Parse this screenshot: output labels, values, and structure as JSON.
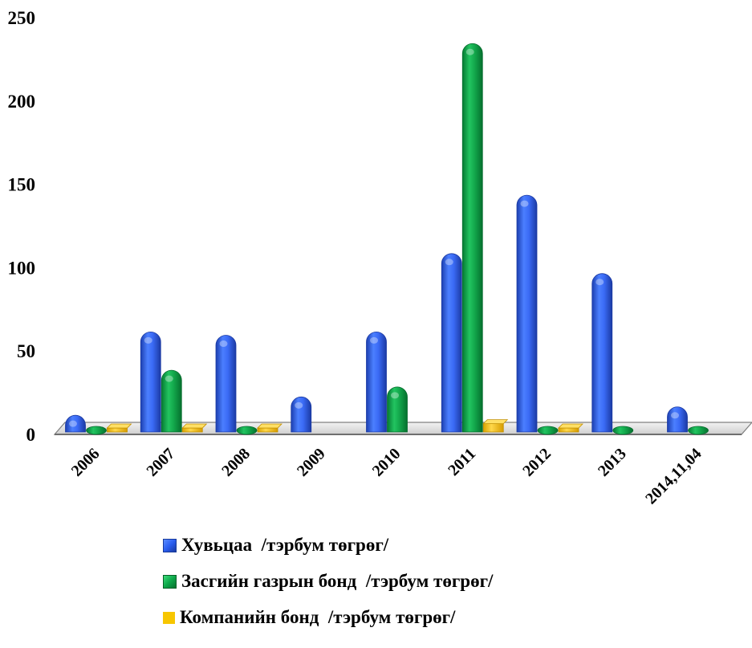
{
  "chart_data": {
    "type": "bar",
    "categories": [
      "2006",
      "2007",
      "2008",
      "2009",
      "2010",
      "2011",
      "2012",
      "2013",
      "2014,11,04"
    ],
    "series": [
      {
        "name": "Хувьцаа  /тэрбум төгрөг/",
        "color": "#2a5ef0",
        "values": [
          11,
          61,
          59,
          22,
          61,
          108,
          143,
          96,
          16
        ]
      },
      {
        "name": "Засгийн газрын бонд  /тэрбум төгрөг/",
        "color": "#0da84a",
        "values": [
          3,
          38,
          1,
          0,
          28,
          234,
          0.5,
          1,
          3
        ]
      },
      {
        "name": "Компанийн бонд  /тэрбум төгрөг/",
        "color": "#f7c600",
        "values": [
          1,
          1,
          1,
          0,
          0,
          5,
          0.5,
          0,
          0
        ]
      }
    ],
    "yticks": [
      "0",
      "50",
      "100",
      "150",
      "200",
      "250"
    ],
    "ylim": [
      0,
      250
    ],
    "grid": false,
    "legend_position": "bottom"
  }
}
